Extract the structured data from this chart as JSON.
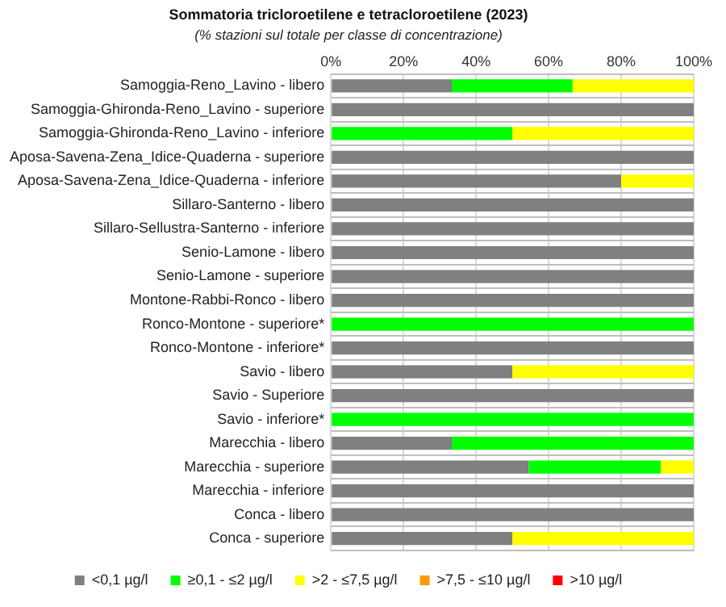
{
  "chart_data": {
    "type": "bar",
    "orientation": "horizontal",
    "stacked": true,
    "title": "Sommatoria tricloroetilene e tetracloroetilene (2023)",
    "subtitle": "(% stazioni sul totale per classe di concentrazione)",
    "categories": [
      "Samoggia-Reno_Lavino - libero",
      "Samoggia-Ghironda-Reno_Lavino - superiore",
      "Samoggia-Ghironda-Reno_Lavino - inferiore",
      "Aposa-Savena-Zena_Idice-Quaderna - superiore",
      "Aposa-Savena-Zena_Idice-Quaderna - inferiore",
      "Sillaro-Santerno - libero",
      "Sillaro-Sellustra-Santerno - inferiore",
      "Senio-Lamone - libero",
      "Senio-Lamone - superiore",
      "Montone-Rabbi-Ronco - libero",
      "Ronco-Montone - superiore*",
      "Ronco-Montone - inferiore*",
      "Savio - libero",
      "Savio - Superiore",
      "Savio - inferiore*",
      "Marecchia - libero",
      "Marecchia - superiore",
      "Marecchia - inferiore",
      "Conca - libero",
      "Conca - superiore"
    ],
    "series": [
      {
        "name": "<0,1 µg/l",
        "color": "#808080",
        "values": [
          33.3,
          100,
          0,
          100,
          80,
          100,
          100,
          100,
          100,
          100,
          0,
          100,
          50,
          100,
          0,
          33.3,
          54.5,
          100,
          100,
          50
        ]
      },
      {
        "name": "≥0,1 - ≤2 µg/l",
        "color": "#00ff00",
        "values": [
          33.3,
          0,
          50,
          0,
          0,
          0,
          0,
          0,
          0,
          0,
          100,
          0,
          0,
          0,
          100,
          66.7,
          36.4,
          0,
          0,
          0
        ]
      },
      {
        "name": ">2 - ≤7,5 µg/l",
        "color": "#ffff00",
        "values": [
          33.4,
          0,
          50,
          0,
          20,
          0,
          0,
          0,
          0,
          0,
          0,
          0,
          50,
          0,
          0,
          0,
          9.1,
          0,
          0,
          50
        ]
      },
      {
        "name": ">7,5 - ≤10 µg/l",
        "color": "#ff9900",
        "values": [
          0,
          0,
          0,
          0,
          0,
          0,
          0,
          0,
          0,
          0,
          0,
          0,
          0,
          0,
          0,
          0,
          0,
          0,
          0,
          0
        ]
      },
      {
        "name": ">10 µg/l",
        "color": "#ff0000",
        "values": [
          0,
          0,
          0,
          0,
          0,
          0,
          0,
          0,
          0,
          0,
          0,
          0,
          0,
          0,
          0,
          0,
          0,
          0,
          0,
          0
        ]
      }
    ],
    "xlim": [
      0,
      100
    ],
    "xticks": [
      {
        "value": 0,
        "label": "0%"
      },
      {
        "value": 20,
        "label": "20%"
      },
      {
        "value": 40,
        "label": "40%"
      },
      {
        "value": 60,
        "label": "60%"
      },
      {
        "value": 80,
        "label": "80%"
      },
      {
        "value": 100,
        "label": "100%"
      }
    ],
    "grid": true,
    "legend": "bottom"
  }
}
